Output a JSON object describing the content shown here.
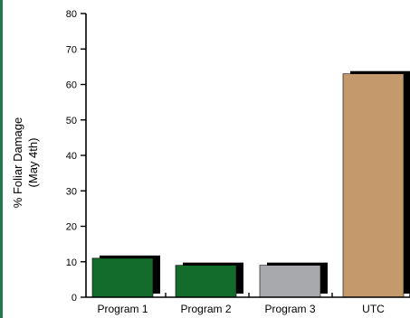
{
  "chart_data": {
    "type": "bar",
    "title": "",
    "xlabel": "",
    "ylabel": "% Foliar Damage",
    "ylabel_line2": "(May 4th)",
    "categories": [
      "Program 1",
      "Program 2",
      "Program 3",
      "UTC"
    ],
    "values": [
      11,
      9,
      9,
      63
    ],
    "bar_colors": [
      "#136b2c",
      "#136b2c",
      "#a7a9ac",
      "#c49a6c"
    ],
    "shadow_color": "#000000",
    "edge_color": "#1e7a4b",
    "ylim": [
      0,
      80
    ],
    "yticks": [
      0,
      10,
      20,
      30,
      40,
      50,
      60,
      70,
      80
    ],
    "grid": false,
    "legend": "none"
  }
}
